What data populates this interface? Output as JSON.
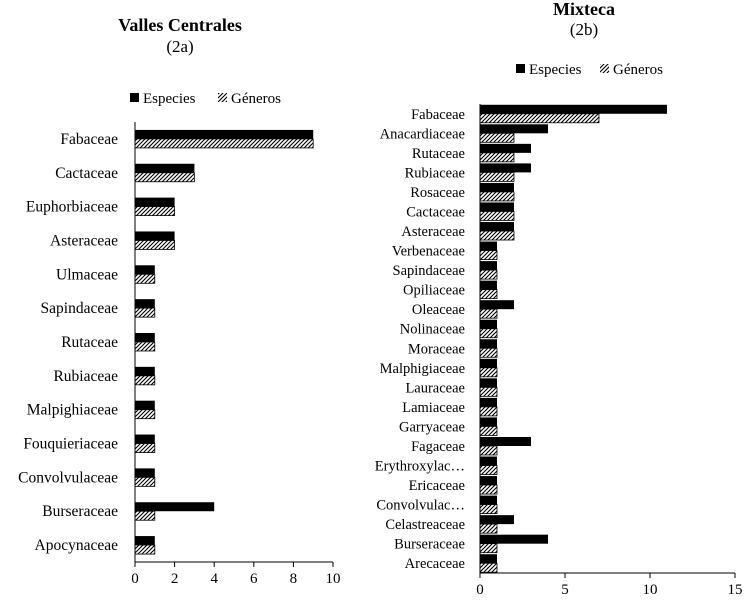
{
  "chart_data": [
    {
      "type": "bar",
      "orientation": "horizontal",
      "title": "Valles Centrales",
      "subtitle": "(2a)",
      "legend_position": "top",
      "categories": [
        "Fabaceae",
        "Cactaceae",
        "Euphorbiaceae",
        "Asteraceae",
        "Ulmaceae",
        "Sapindaceae",
        "Rutaceae",
        "Rubiaceae",
        "Malpighiaceae",
        "Fouquieriaceae",
        "Convolvulaceae",
        "Burseraceae",
        "Apocynaceae"
      ],
      "series": [
        {
          "name": "Especies",
          "values": [
            9,
            3,
            2,
            2,
            1,
            1,
            1,
            1,
            1,
            1,
            1,
            4,
            1
          ]
        },
        {
          "name": "Géneros",
          "values": [
            9,
            3,
            2,
            2,
            1,
            1,
            1,
            1,
            1,
            1,
            1,
            1,
            1
          ]
        }
      ],
      "xlim": [
        0,
        10
      ],
      "xticks": [
        "0",
        "2",
        "4",
        "6",
        "8",
        "10"
      ]
    },
    {
      "type": "bar",
      "orientation": "horizontal",
      "title": "Mixteca",
      "subtitle": "(2b)",
      "legend_position": "top",
      "categories": [
        "Fabaceae",
        "Anacardiaceae",
        "Rutaceae",
        "Rubiaceae",
        "Rosaceae",
        "Cactaceae",
        "Asteraceae",
        "Verbenaceae",
        "Sapindaceae",
        "Opiliaceae",
        "Oleaceae",
        "Nolinaceae",
        "Moraceae",
        "Malphigiaceae",
        "Lauraceae",
        "Lamiaceae",
        "Garryaceae",
        "Fagaceae",
        "Erythroxylac…",
        "Ericaceae",
        "Convolvulac…",
        "Celastreaceae",
        "Burseraceae",
        "Arecaceae"
      ],
      "series": [
        {
          "name": "Especies",
          "values": [
            11,
            4,
            3,
            3,
            2,
            2,
            2,
            1,
            1,
            1,
            2,
            1,
            1,
            1,
            1,
            1,
            1,
            3,
            1,
            1,
            1,
            2,
            4,
            1
          ]
        },
        {
          "name": "Géneros",
          "values": [
            7,
            2,
            2,
            2,
            2,
            2,
            2,
            1,
            1,
            1,
            1,
            1,
            1,
            1,
            1,
            1,
            1,
            1,
            1,
            1,
            1,
            1,
            1,
            1
          ]
        }
      ],
      "xlim": [
        0,
        15
      ],
      "xticks": [
        "0",
        "5",
        "10",
        "15"
      ]
    }
  ]
}
